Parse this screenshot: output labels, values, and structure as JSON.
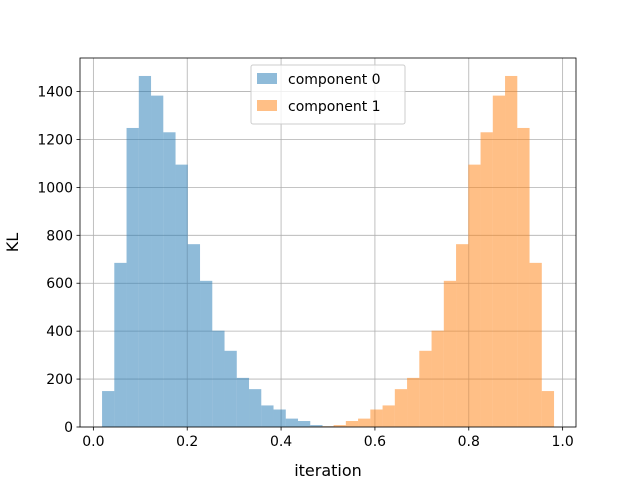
{
  "chart_data": {
    "type": "bar",
    "title": "",
    "xlabel": "iteration",
    "ylabel": "KL",
    "xlim": [
      -0.0285,
      1.0285
    ],
    "ylim": [
      0,
      1540
    ],
    "xticks": [
      0.0,
      0.2,
      0.4,
      0.6,
      0.8,
      1.0
    ],
    "xtick_labels": [
      "0.0",
      "0.2",
      "0.4",
      "0.6",
      "0.8",
      "1.0"
    ],
    "yticks": [
      0,
      200,
      400,
      600,
      800,
      1000,
      1200,
      1400
    ],
    "ytick_labels": [
      "0",
      "200",
      "400",
      "600",
      "800",
      "1000",
      "1200",
      "1400"
    ],
    "grid": true,
    "legend_position": "top-center",
    "series": [
      {
        "name": "component 0",
        "color": "#1f77b4",
        "opacity": 0.5,
        "bin_edges": [
          0.0185,
          0.0446,
          0.0707,
          0.0968,
          0.1229,
          0.149,
          0.1751,
          0.2012,
          0.2273,
          0.2534,
          0.2795,
          0.3056,
          0.3317,
          0.3578,
          0.3839,
          0.41,
          0.4361,
          0.4622,
          0.4883,
          0.5144,
          0.5405
        ],
        "values": [
          150,
          685,
          1248,
          1465,
          1383,
          1230,
          1095,
          763,
          610,
          402,
          318,
          205,
          158,
          90,
          73,
          35,
          25,
          8,
          3,
          2
        ]
      },
      {
        "name": "component 1",
        "color": "#ff7f0e",
        "opacity": 0.5,
        "bin_edges": [
          0.4597,
          0.4858,
          0.5119,
          0.538,
          0.5641,
          0.5902,
          0.6163,
          0.6424,
          0.6685,
          0.6946,
          0.7207,
          0.7468,
          0.7729,
          0.799,
          0.8251,
          0.8512,
          0.8773,
          0.9034,
          0.9295,
          0.9556,
          0.9817
        ],
        "values": [
          2,
          3,
          8,
          25,
          35,
          73,
          90,
          158,
          205,
          318,
          402,
          610,
          763,
          1095,
          1230,
          1383,
          1465,
          1248,
          685,
          150
        ]
      }
    ]
  }
}
